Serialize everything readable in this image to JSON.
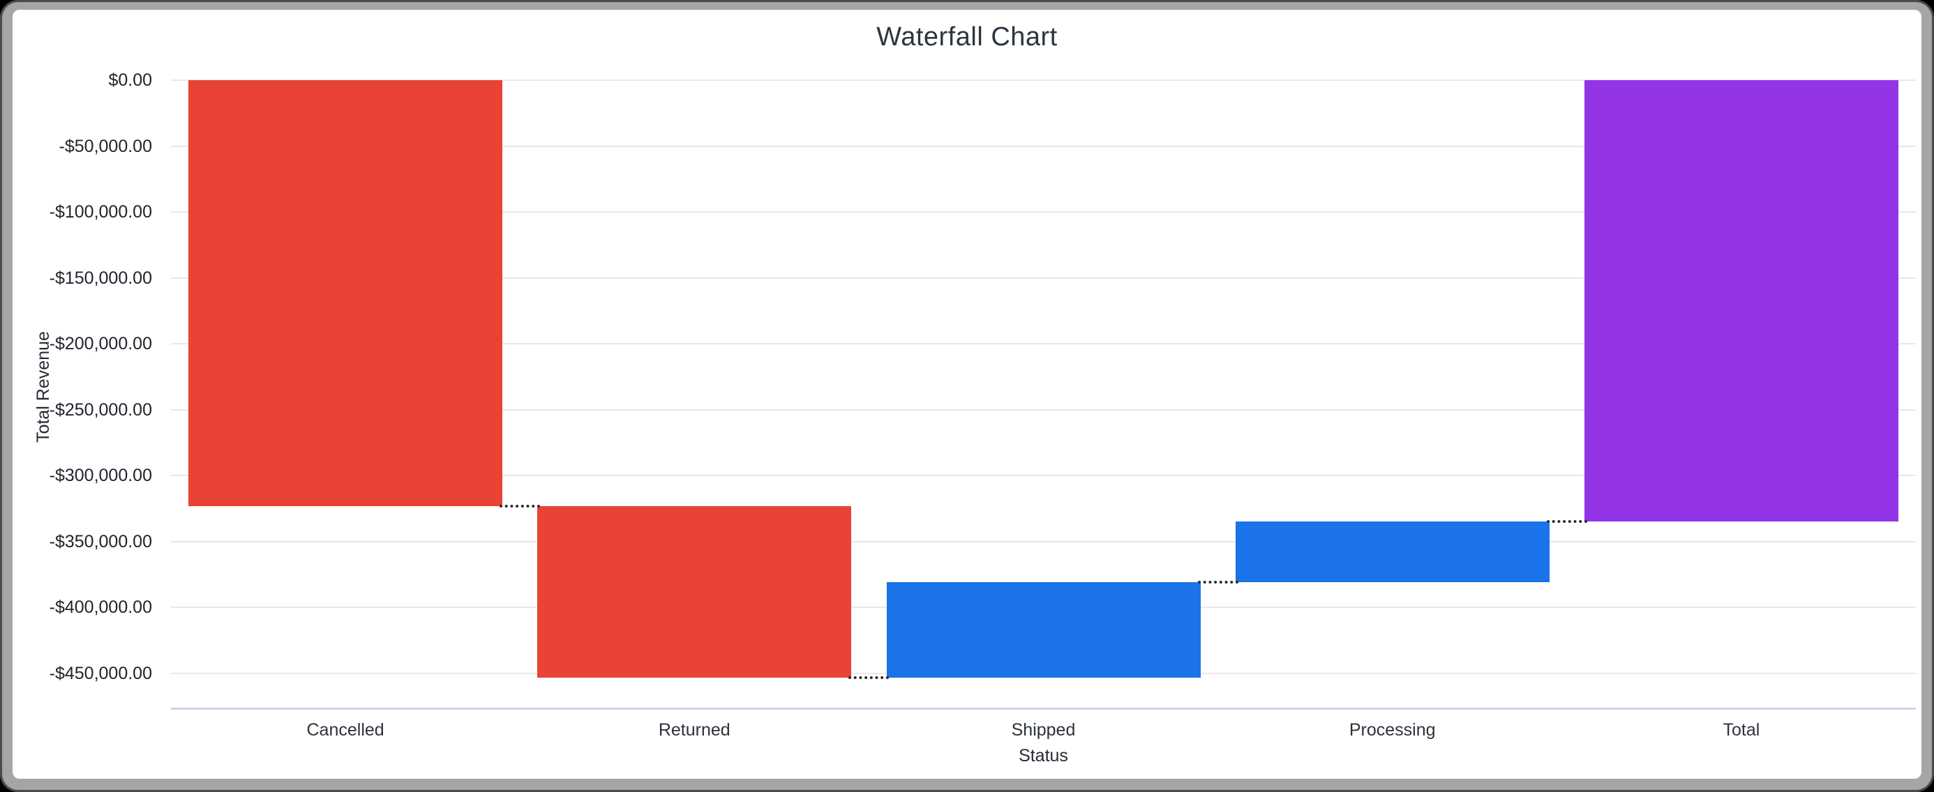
{
  "window": {
    "kind": "chart-card"
  },
  "chart_data": {
    "type": "waterfall",
    "title": "Waterfall Chart",
    "xlabel": "Status",
    "ylabel": "Total Revenue",
    "categories": [
      "Cancelled",
      "Returned",
      "Shipped",
      "Processing",
      "Total"
    ],
    "bars": [
      {
        "label": "Cancelled",
        "kind": "decrease",
        "value": -323000,
        "cumulative": -323000,
        "color": "#E84335"
      },
      {
        "label": "Returned",
        "kind": "decrease",
        "value": -130000,
        "cumulative": -453000,
        "color": "#E84335"
      },
      {
        "label": "Shipped",
        "kind": "increase",
        "value": 72500,
        "cumulative": -380500,
        "color": "#1A73E8"
      },
      {
        "label": "Processing",
        "kind": "increase",
        "value": 45800,
        "cumulative": -334700,
        "color": "#1A73E8"
      },
      {
        "label": "Total",
        "kind": "total",
        "value": -334700,
        "cumulative": -334700,
        "color": "#9334E6"
      }
    ],
    "y_axis": {
      "ticks": [
        {
          "label": "$0.00",
          "value": 0
        },
        {
          "label": "-$50,000.00",
          "value": -50000
        },
        {
          "label": "-$100,000.00",
          "value": -100000
        },
        {
          "label": "-$150,000.00",
          "value": -150000
        },
        {
          "label": "-$200,000.00",
          "value": -200000
        },
        {
          "label": "-$250,000.00",
          "value": -250000
        },
        {
          "label": "-$300,000.00",
          "value": -300000
        },
        {
          "label": "-$350,000.00",
          "value": -350000
        },
        {
          "label": "-$400,000.00",
          "value": -400000
        },
        {
          "label": "-$450,000.00",
          "value": -450000
        }
      ],
      "ylim": [
        -476500,
        0
      ]
    },
    "grid": true,
    "legend": "none",
    "connector_style": "dotted",
    "colors": {
      "decrease": "#E84335",
      "increase": "#1A73E8",
      "total": "#9334E6",
      "gridline": "#E8E8E8",
      "axis_baseline": "#CCD3E6",
      "connector": "#2B2B2B",
      "text": "#252B33",
      "frame_border": "#A5A5A5",
      "background": "#FFFFFF"
    }
  }
}
